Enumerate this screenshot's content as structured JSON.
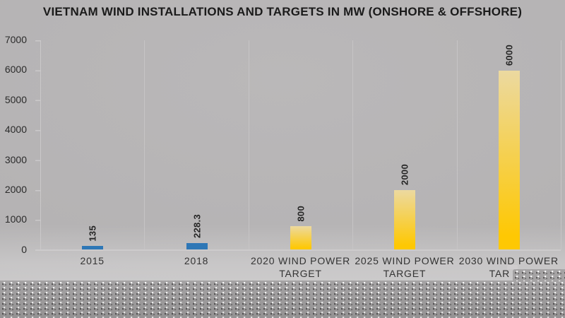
{
  "title": "VIETNAM WIND INSTALLATIONS AND TARGETS IN MW (ONSHORE & OFFSHORE)",
  "colors": {
    "installed_blue": "#2e77b6",
    "target_yellow_top": "#ecd9a0",
    "target_yellow_bottom": "#fec803",
    "slide_background": "#b4b2b3",
    "texture_band": "#a5a3a4",
    "gridline": "#c6c4c5",
    "title_text": "#1b1b1b",
    "label_text": "#333333"
  },
  "y_axis": {
    "ticks": [
      "7000",
      "6000",
      "5000",
      "4000",
      "3000",
      "2000",
      "1000",
      "0"
    ]
  },
  "x_axis": {
    "labels": [
      {
        "line1": "2015",
        "line2": ""
      },
      {
        "line1": "2018",
        "line2": ""
      },
      {
        "line1": "2020 WIND POWER",
        "line2": "TARGET"
      },
      {
        "line1": "2025 WIND POWER",
        "line2": "TARGET"
      },
      {
        "line1": "2030 WIND POWER",
        "line2": "TAR"
      }
    ]
  },
  "chart_data": {
    "type": "bar",
    "title": "VIETNAM WIND INSTALLATIONS AND TARGETS IN MW (ONSHORE & OFFSHORE)",
    "categories": [
      "2015",
      "2018",
      "2020 WIND POWER TARGET",
      "2025 WIND POWER TARGET",
      "2030 WIND POWER TAR"
    ],
    "values": [
      135,
      228.3,
      800,
      2000,
      6000
    ],
    "value_labels": [
      "135",
      "228.3",
      "800",
      "2000",
      "6000"
    ],
    "bar_styles": [
      "installed",
      "installed",
      "target",
      "target",
      "target"
    ],
    "value_label_rotation": "90deg counterclockwise, above bar",
    "xlabel": "",
    "ylabel": "",
    "ylim": [
      0,
      7000
    ],
    "y_tick_step": 1000,
    "grid": "vertical category separators only, light gray",
    "legend": "none"
  }
}
